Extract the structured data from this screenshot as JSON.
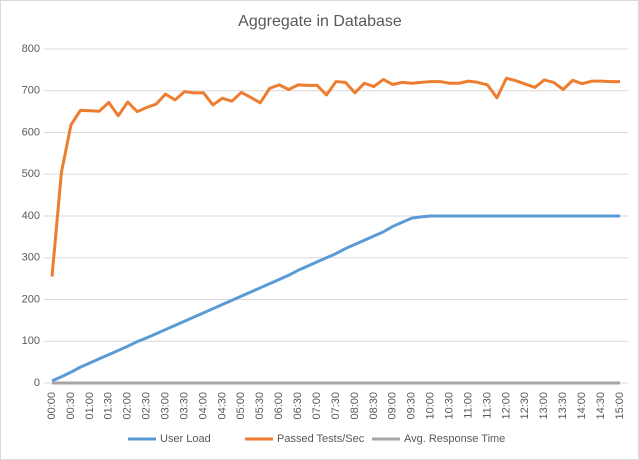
{
  "chart_data": {
    "type": "line",
    "title": "Aggregate in Database",
    "categories": [
      "00:00",
      null,
      "00:30",
      null,
      "01:00",
      null,
      "01:30",
      null,
      "02:00",
      null,
      "02:30",
      null,
      "03:00",
      null,
      "03:30",
      null,
      "04:00",
      null,
      "04:30",
      null,
      "05:00",
      null,
      "05:30",
      null,
      "06:00",
      null,
      "06:30",
      null,
      "07:00",
      null,
      "07:30",
      null,
      "08:00",
      null,
      "08:30",
      null,
      "09:00",
      null,
      "09:30",
      null,
      "10:00",
      null,
      "10:30",
      null,
      "11:00",
      null,
      "11:30",
      null,
      "12:00",
      null,
      "12:30",
      null,
      "13:00",
      null,
      "13:30",
      null,
      "14:00",
      null,
      "14:30",
      null,
      "15:00"
    ],
    "series": [
      {
        "name": "User Load",
        "color": "#5b9bd5",
        "values": [
          5,
          15,
          26,
          38,
          48,
          58,
          68,
          78,
          88,
          99,
          108,
          118,
          128,
          138,
          148,
          158,
          168,
          178,
          188,
          198,
          208,
          218,
          228,
          238,
          248,
          258,
          270,
          280,
          290,
          300,
          310,
          322,
          332,
          342,
          352,
          362,
          375,
          385,
          395,
          398,
          400,
          400,
          400,
          400,
          400,
          400,
          400,
          400,
          400,
          400,
          400,
          400,
          400,
          400,
          400,
          400,
          400,
          400,
          400,
          400,
          400
        ]
      },
      {
        "name": "Passed Tests/Sec",
        "color": "#ed7d31",
        "values": [
          255,
          505,
          618,
          653,
          652,
          651,
          672,
          640,
          673,
          650,
          660,
          668,
          692,
          678,
          698,
          695,
          695,
          666,
          682,
          675,
          696,
          684,
          671,
          706,
          714,
          703,
          714,
          713,
          713,
          690,
          722,
          720,
          695,
          718,
          710,
          727,
          715,
          720,
          718,
          720,
          722,
          722,
          718,
          718,
          723,
          720,
          714,
          683,
          730,
          724,
          716,
          708,
          726,
          720,
          703,
          725,
          717,
          723,
          723,
          722,
          722
        ]
      },
      {
        "name": "Avg. Response Time",
        "color": "#a5a5a5",
        "values": [
          0,
          0,
          0,
          0,
          0,
          0,
          0,
          0,
          0,
          0,
          0,
          0,
          0,
          0,
          0,
          0,
          0,
          0,
          0,
          0,
          0,
          0,
          0,
          0,
          0,
          0,
          0,
          0,
          0,
          0,
          0,
          0,
          0,
          0,
          0,
          0,
          0,
          0,
          0,
          0,
          0,
          0,
          0,
          0,
          0,
          0,
          0,
          0,
          0,
          0,
          0,
          0,
          0,
          0,
          0,
          0,
          0,
          0,
          0,
          0,
          0
        ]
      }
    ],
    "ylim": [
      0,
      800
    ],
    "yticks": [
      0,
      100,
      200,
      300,
      400,
      500,
      600,
      700,
      800
    ],
    "grid": true,
    "legend": "bottom"
  }
}
